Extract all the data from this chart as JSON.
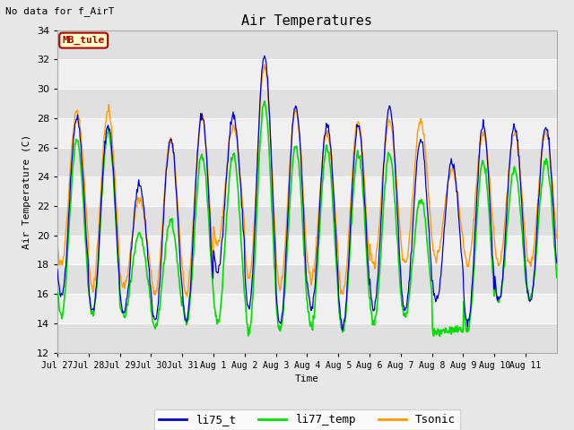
{
  "title": "Air Temperatures",
  "ylabel": "Air Temperature (C)",
  "xlabel": "Time",
  "no_data_text": "No data for f_AirT",
  "annotation_text": "MB_tule",
  "ylim": [
    12,
    34
  ],
  "yticks": [
    12,
    14,
    16,
    18,
    20,
    22,
    24,
    26,
    28,
    30,
    32,
    34
  ],
  "legend_labels": [
    "li75_t",
    "li77_temp",
    "Tsonic"
  ],
  "line_colors": [
    "#0000cc",
    "#00dd00",
    "#ff9900"
  ],
  "fig_bg_color": "#e8e8e8",
  "plot_bg_color": "#ffffff",
  "band_color_dark": "#e0e0e0",
  "band_color_light": "#f0f0f0",
  "annotation_bg": "#ffffcc",
  "annotation_border": "#aa0000",
  "annotation_text_color": "#aa0000",
  "tick_labels": [
    "Jul 27",
    "Jul 28",
    "Jul 29",
    "Jul 30",
    "Jul 31",
    "Aug 1",
    "Aug 2",
    "Aug 3",
    "Aug 4",
    "Aug 5",
    "Aug 6",
    "Aug 7",
    "Aug 8",
    "Aug 9",
    "Aug 10",
    "Aug 11"
  ],
  "figsize": [
    6.4,
    4.8
  ],
  "dpi": 100
}
